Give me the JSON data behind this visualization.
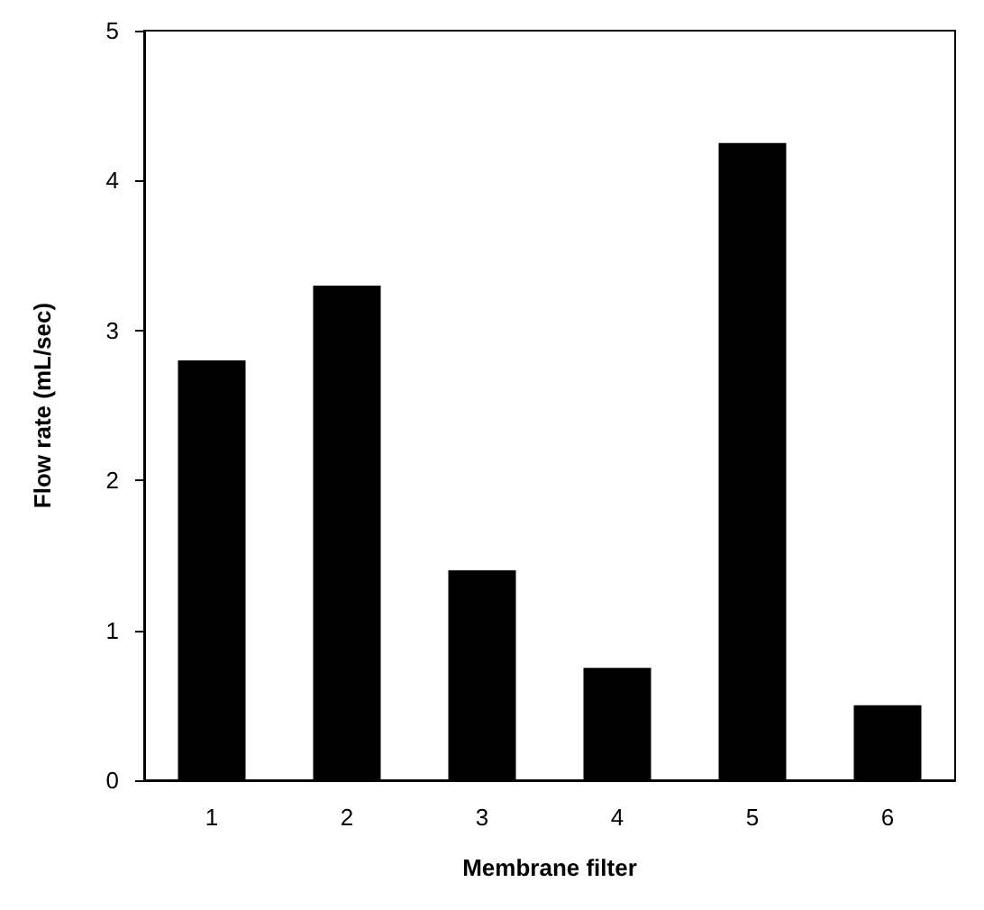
{
  "chart_data": {
    "type": "bar",
    "xlabel": "Membrane filter",
    "ylabel": "Flow rate (mL/sec)",
    "categories": [
      "1",
      "2",
      "3",
      "4",
      "5",
      "6"
    ],
    "values": [
      2.8,
      3.3,
      1.4,
      0.75,
      4.25,
      0.5
    ],
    "color": "#000000",
    "ylim": [
      0,
      5
    ],
    "yticks": [
      0,
      1,
      2,
      3,
      4,
      5
    ],
    "grid": false
  }
}
